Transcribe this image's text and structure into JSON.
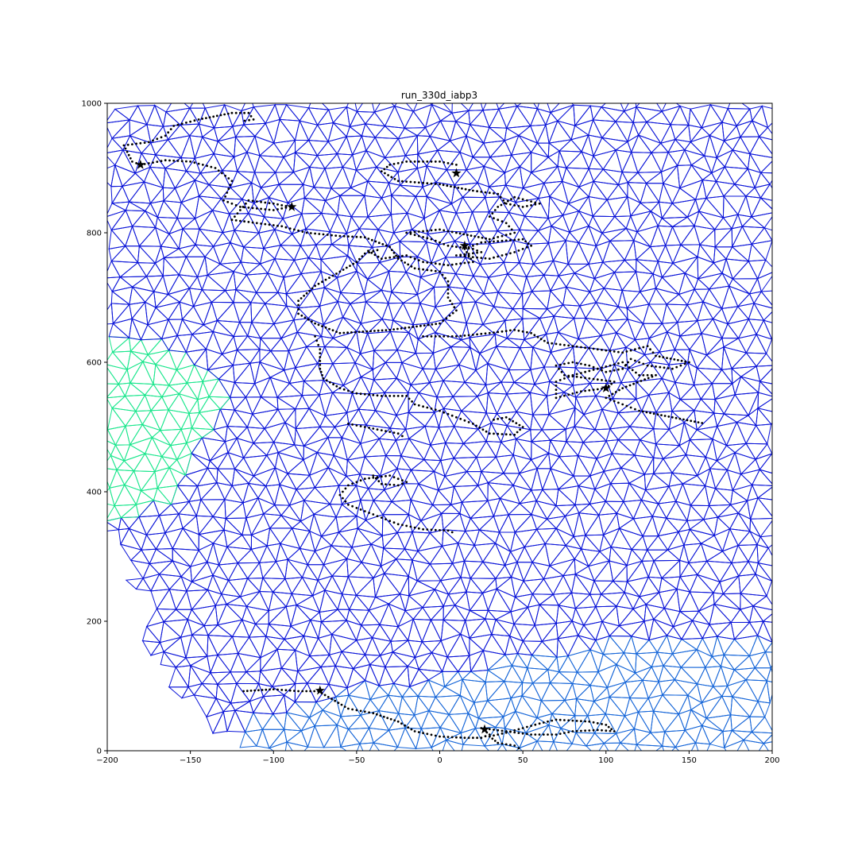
{
  "chart_data": {
    "type": "scatter",
    "title": "run_330d_iabp3",
    "xlabel": "",
    "ylabel": "",
    "xlim": [
      -200,
      200
    ],
    "ylim": [
      0,
      1000
    ],
    "x_ticks": [
      -200,
      -150,
      -100,
      -50,
      0,
      50,
      100,
      150,
      200
    ],
    "y_ticks": [
      0,
      200,
      400,
      600,
      800,
      1000
    ],
    "x_tick_labels": [
      "−200",
      "−150",
      "−100",
      "−50",
      "0",
      "50",
      "100",
      "150",
      "200"
    ],
    "y_tick_labels": [
      "0",
      "200",
      "400",
      "600",
      "800",
      "1000"
    ],
    "grid": false,
    "legend": "none",
    "mesh": {
      "description_free": true,
      "colors": {
        "main": "#0a14d8",
        "light": "#1565d8",
        "green": "#19e68c"
      },
      "green_region": [
        [
          -200,
          635
        ],
        [
          -170,
          630
        ],
        [
          -140,
          590
        ],
        [
          -125,
          550
        ],
        [
          -135,
          500
        ],
        [
          -145,
          460
        ],
        [
          -150,
          420
        ],
        [
          -170,
          380
        ],
        [
          -185,
          355
        ],
        [
          -200,
          355
        ]
      ],
      "light_region": [
        [
          -40,
          0
        ],
        [
          200,
          0
        ],
        [
          200,
          170
        ],
        [
          120,
          175
        ],
        [
          60,
          160
        ],
        [
          20,
          130
        ],
        [
          -10,
          110
        ],
        [
          -60,
          90
        ],
        [
          -100,
          60
        ],
        [
          -130,
          20
        ],
        [
          -140,
          0
        ]
      ],
      "outline": [
        [
          -200,
          1000
        ],
        [
          200,
          1000
        ],
        [
          200,
          0
        ],
        [
          -140,
          0
        ],
        [
          -125,
          5
        ],
        [
          -118,
          22
        ],
        [
          -135,
          40
        ],
        [
          -150,
          75
        ],
        [
          -160,
          100
        ],
        [
          -162,
          125
        ],
        [
          -175,
          165
        ],
        [
          -180,
          200
        ],
        [
          -170,
          215
        ],
        [
          -175,
          245
        ],
        [
          -188,
          255
        ],
        [
          -184,
          275
        ],
        [
          -190,
          300
        ],
        [
          -188,
          315
        ],
        [
          -192,
          330
        ],
        [
          -200,
          345
        ]
      ]
    },
    "series": [
      {
        "marker": "dots",
        "color": "#000000",
        "points": [
          [
            -180,
            905
          ],
          [
            -185,
            910
          ],
          [
            -190,
            935
          ],
          [
            -175,
            940
          ],
          [
            -165,
            950
          ],
          [
            -160,
            965
          ],
          [
            -145,
            975
          ],
          [
            -125,
            985
          ],
          [
            -115,
            985
          ],
          [
            -112,
            975
          ],
          [
            -120,
            972
          ]
        ]
      },
      {
        "marker": "dots",
        "color": "#000000",
        "points": [
          [
            -180,
            905
          ],
          [
            -165,
            912
          ],
          [
            -150,
            910
          ],
          [
            -135,
            900
          ],
          [
            -125,
            880
          ],
          [
            -130,
            850
          ],
          [
            -120,
            840
          ],
          [
            -100,
            835
          ],
          [
            -90,
            840
          ],
          [
            -100,
            845
          ],
          [
            -115,
            850
          ],
          [
            -125,
            820
          ],
          [
            -110,
            815
          ],
          [
            -95,
            810
          ],
          [
            -80,
            800
          ],
          [
            -60,
            795
          ],
          [
            -45,
            793
          ],
          [
            -30,
            778
          ],
          [
            -25,
            760
          ],
          [
            -15,
            745
          ],
          [
            0,
            740
          ],
          [
            5,
            725
          ],
          [
            5,
            700
          ],
          [
            10,
            680
          ],
          [
            0,
            660
          ],
          [
            -30,
            650
          ],
          [
            -60,
            645
          ],
          [
            -75,
            660
          ],
          [
            -85,
            675
          ],
          [
            -85,
            695
          ],
          [
            -75,
            718
          ],
          [
            -60,
            740
          ],
          [
            -50,
            755
          ],
          [
            -45,
            768
          ],
          [
            -35,
            775
          ]
        ]
      },
      {
        "marker": "dots",
        "color": "#000000",
        "points": [
          [
            -75,
            640
          ],
          [
            -72,
            620
          ],
          [
            -72,
            590
          ],
          [
            -70,
            575
          ],
          [
            -60,
            560
          ],
          [
            -50,
            552
          ],
          [
            -35,
            548
          ],
          [
            -20,
            548
          ],
          [
            -15,
            535
          ],
          [
            0,
            525
          ],
          [
            10,
            515
          ],
          [
            20,
            505
          ],
          [
            30,
            490
          ],
          [
            45,
            488
          ],
          [
            50,
            500
          ],
          [
            40,
            515
          ],
          [
            30,
            510
          ]
        ]
      },
      {
        "marker": "dots",
        "color": "#000000",
        "points": [
          [
            -55,
            505
          ],
          [
            -45,
            500
          ],
          [
            -35,
            495
          ],
          [
            -25,
            490
          ],
          [
            -20,
            482
          ]
        ]
      },
      {
        "marker": "dots",
        "color": "#000000",
        "points": [
          [
            -40,
            425
          ],
          [
            -35,
            412
          ],
          [
            -25,
            410
          ],
          [
            -20,
            415
          ],
          [
            -30,
            425
          ],
          [
            -45,
            420
          ],
          [
            -55,
            410
          ],
          [
            -60,
            395
          ],
          [
            -55,
            380
          ],
          [
            -45,
            370
          ],
          [
            -35,
            360
          ],
          [
            -25,
            350
          ],
          [
            -10,
            342
          ],
          [
            5,
            340
          ],
          [
            10,
            335
          ]
        ]
      },
      {
        "marker": "dots",
        "color": "#000000",
        "points": [
          [
            10,
            905
          ],
          [
            0,
            910
          ],
          [
            -20,
            910
          ],
          [
            -30,
            905
          ],
          [
            -35,
            895
          ],
          [
            -25,
            880
          ],
          [
            0,
            875
          ],
          [
            20,
            865
          ],
          [
            35,
            860
          ],
          [
            40,
            845
          ],
          [
            50,
            840
          ],
          [
            60,
            845
          ],
          [
            45,
            855
          ],
          [
            35,
            840
          ],
          [
            30,
            825
          ],
          [
            40,
            815
          ],
          [
            45,
            800
          ],
          [
            30,
            790
          ],
          [
            10,
            800
          ],
          [
            0,
            805
          ],
          [
            -20,
            800
          ],
          [
            -5,
            790
          ],
          [
            5,
            780
          ],
          [
            20,
            775
          ],
          [
            25,
            770
          ],
          [
            10,
            765
          ],
          [
            30,
            760
          ],
          [
            45,
            770
          ],
          [
            55,
            780
          ],
          [
            50,
            790
          ],
          [
            25,
            785
          ],
          [
            15,
            775
          ],
          [
            20,
            755
          ],
          [
            5,
            750
          ],
          [
            -10,
            755
          ],
          [
            -20,
            765
          ],
          [
            -35,
            760
          ],
          [
            -45,
            775
          ]
        ]
      },
      {
        "marker": "dots",
        "color": "#000000",
        "points": [
          [
            -10,
            640
          ],
          [
            10,
            640
          ],
          [
            30,
            645
          ],
          [
            45,
            650
          ],
          [
            55,
            645
          ],
          [
            65,
            630
          ],
          [
            80,
            625
          ],
          [
            95,
            620
          ],
          [
            110,
            615
          ],
          [
            125,
            625
          ],
          [
            130,
            610
          ],
          [
            150,
            600
          ],
          [
            140,
            590
          ],
          [
            125,
            595
          ],
          [
            115,
            605
          ],
          [
            110,
            590
          ],
          [
            100,
            585
          ],
          [
            90,
            595
          ],
          [
            80,
            600
          ],
          [
            70,
            595
          ],
          [
            75,
            580
          ],
          [
            90,
            575
          ],
          [
            105,
            570
          ],
          [
            100,
            560
          ],
          [
            85,
            555
          ],
          [
            70,
            545
          ],
          [
            70,
            570
          ],
          [
            80,
            580
          ],
          [
            95,
            590
          ],
          [
            110,
            600
          ],
          [
            120,
            580
          ],
          [
            130,
            580
          ],
          [
            110,
            560
          ],
          [
            100,
            545
          ],
          [
            110,
            535
          ],
          [
            120,
            525
          ],
          [
            140,
            515
          ],
          [
            160,
            505
          ]
        ]
      },
      {
        "marker": "dots",
        "color": "#000000",
        "points": [
          [
            -118,
            92
          ],
          [
            -100,
            95
          ],
          [
            -85,
            92
          ],
          [
            -73,
            92
          ],
          [
            -65,
            80
          ],
          [
            -55,
            65
          ],
          [
            -40,
            58
          ],
          [
            -25,
            45
          ],
          [
            -15,
            30
          ],
          [
            0,
            22
          ],
          [
            15,
            20
          ],
          [
            25,
            20
          ],
          [
            30,
            25
          ],
          [
            25,
            35
          ],
          [
            40,
            30
          ],
          [
            55,
            25
          ],
          [
            70,
            25
          ],
          [
            80,
            30
          ],
          [
            95,
            32
          ],
          [
            105,
            30
          ],
          [
            100,
            40
          ],
          [
            90,
            45
          ],
          [
            70,
            48
          ],
          [
            60,
            42
          ],
          [
            50,
            35
          ],
          [
            40,
            28
          ],
          [
            30,
            22
          ],
          [
            35,
            12
          ],
          [
            45,
            8
          ],
          [
            50,
            0
          ]
        ]
      }
    ],
    "star_markers": [
      [
        -180,
        905
      ],
      [
        10,
        892
      ],
      [
        -89,
        840
      ],
      [
        -72,
        93
      ],
      [
        27,
        33
      ],
      [
        100,
        560
      ],
      [
        15,
        780
      ]
    ]
  }
}
